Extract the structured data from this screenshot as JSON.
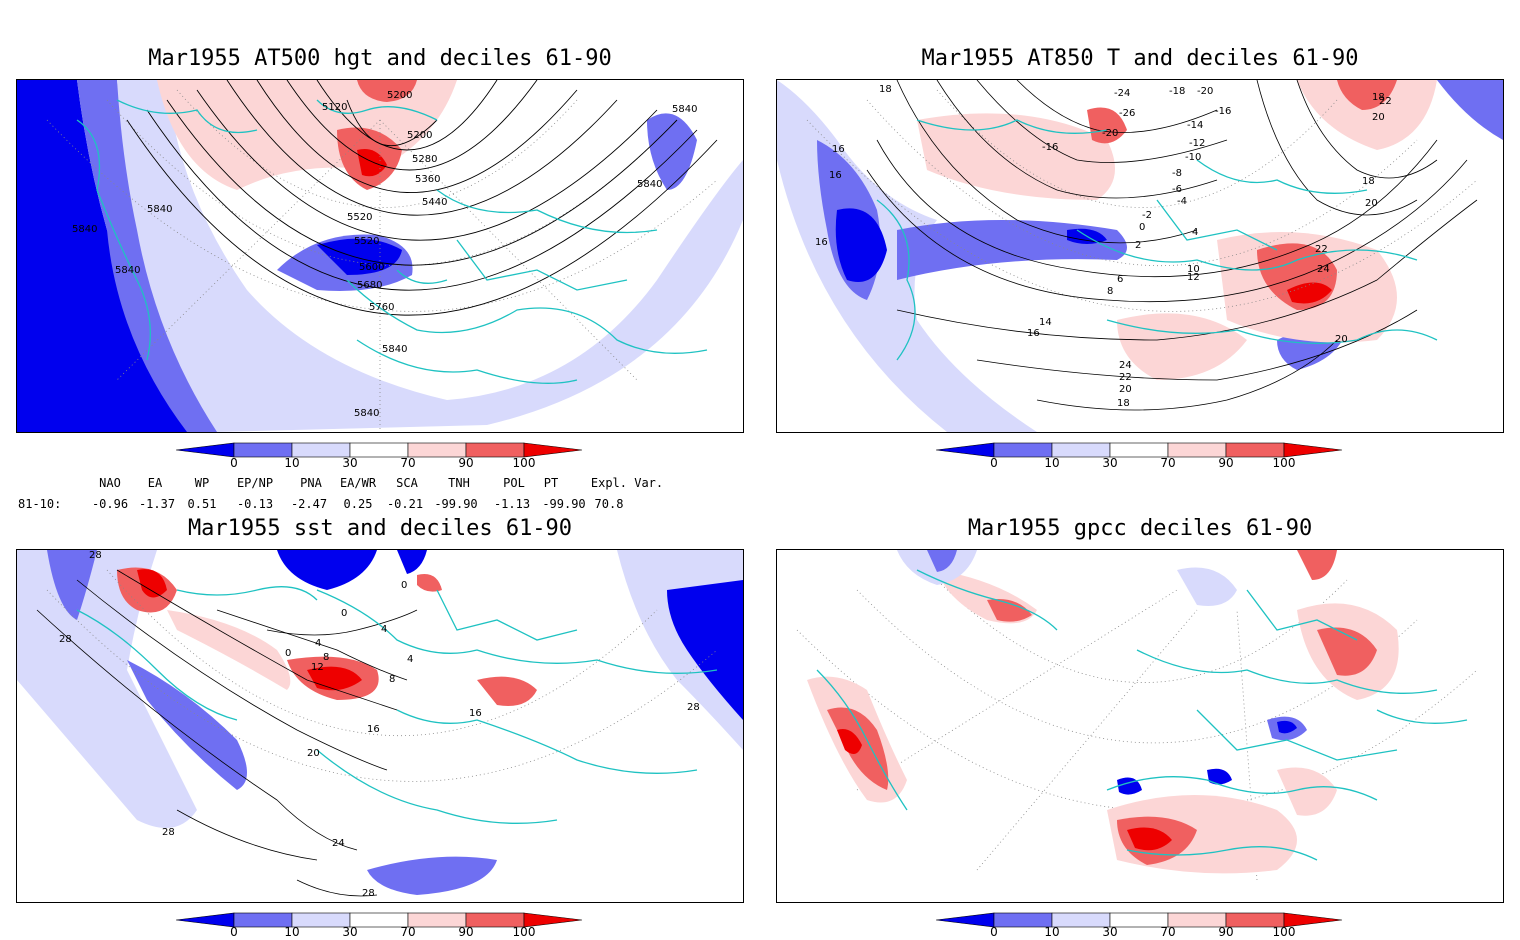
{
  "panels": [
    {
      "id": "p1",
      "title": "Mar1955 AT500 hgt and deciles 61-90",
      "contour_labels": [
        "5120",
        "5200",
        "5200",
        "5280",
        "5360",
        "5440",
        "5520",
        "5520",
        "5600",
        "5680",
        "5760",
        "5840",
        "5840",
        "5840",
        "5840",
        "5840",
        "5840",
        "5840"
      ]
    },
    {
      "id": "p2",
      "title": "Mar1955 AT850 T and deciles 61-90",
      "contour_labels": [
        "18",
        "-24",
        "-18",
        "-20",
        "-16",
        "-26",
        "-14",
        "-16",
        "-20",
        "-12",
        "-10",
        "-8",
        "-6",
        "-4",
        "-2",
        "0",
        "2",
        "4",
        "6",
        "8",
        "10",
        "12",
        "14",
        "16",
        "16",
        "16",
        "16",
        "18",
        "20",
        "22",
        "24",
        "24",
        "22",
        "20",
        "18",
        "18",
        "20",
        "22",
        "20"
      ]
    },
    {
      "id": "p3",
      "title": "Mar1955 sst and deciles 61-90",
      "contour_labels": [
        "28",
        "28",
        "0",
        "0",
        "0",
        "4",
        "4",
        "8",
        "12",
        "16",
        "16",
        "20",
        "24",
        "28",
        "28",
        "28",
        "4",
        "8"
      ]
    },
    {
      "id": "p4",
      "title": "Mar1955 gpcc deciles 61-90",
      "contour_labels": []
    }
  ],
  "colorbar": {
    "ticks": [
      "0",
      "10",
      "30",
      "70",
      "90",
      "100"
    ],
    "colors": [
      "#0000ee",
      "#6f6ff2",
      "#d8dafc",
      "#ffffff",
      "#fcd6d6",
      "#f06060",
      "#ee0000"
    ]
  },
  "indices": {
    "headers": [
      "NAO",
      "EA",
      "WP",
      "EP/NP",
      "PNA",
      "EA/WR",
      "SCA",
      "TNH",
      "POL",
      "PT",
      "Expl. Var."
    ],
    "row_label": "81-10:",
    "values": [
      "-0.96",
      "-1.37",
      "0.51",
      "-0.13",
      "-2.47",
      "0.25",
      "-0.21",
      "-99.90",
      "-1.13",
      "-99.90",
      "70.8"
    ]
  },
  "colors": {
    "coast": "#1fc2c2",
    "strong_neg": "#0000ee",
    "mid_neg": "#6f6ff2",
    "weak_neg": "#d8dafc",
    "weak_pos": "#fcd6d6",
    "mid_pos": "#f06060",
    "strong_pos": "#ee0000"
  }
}
